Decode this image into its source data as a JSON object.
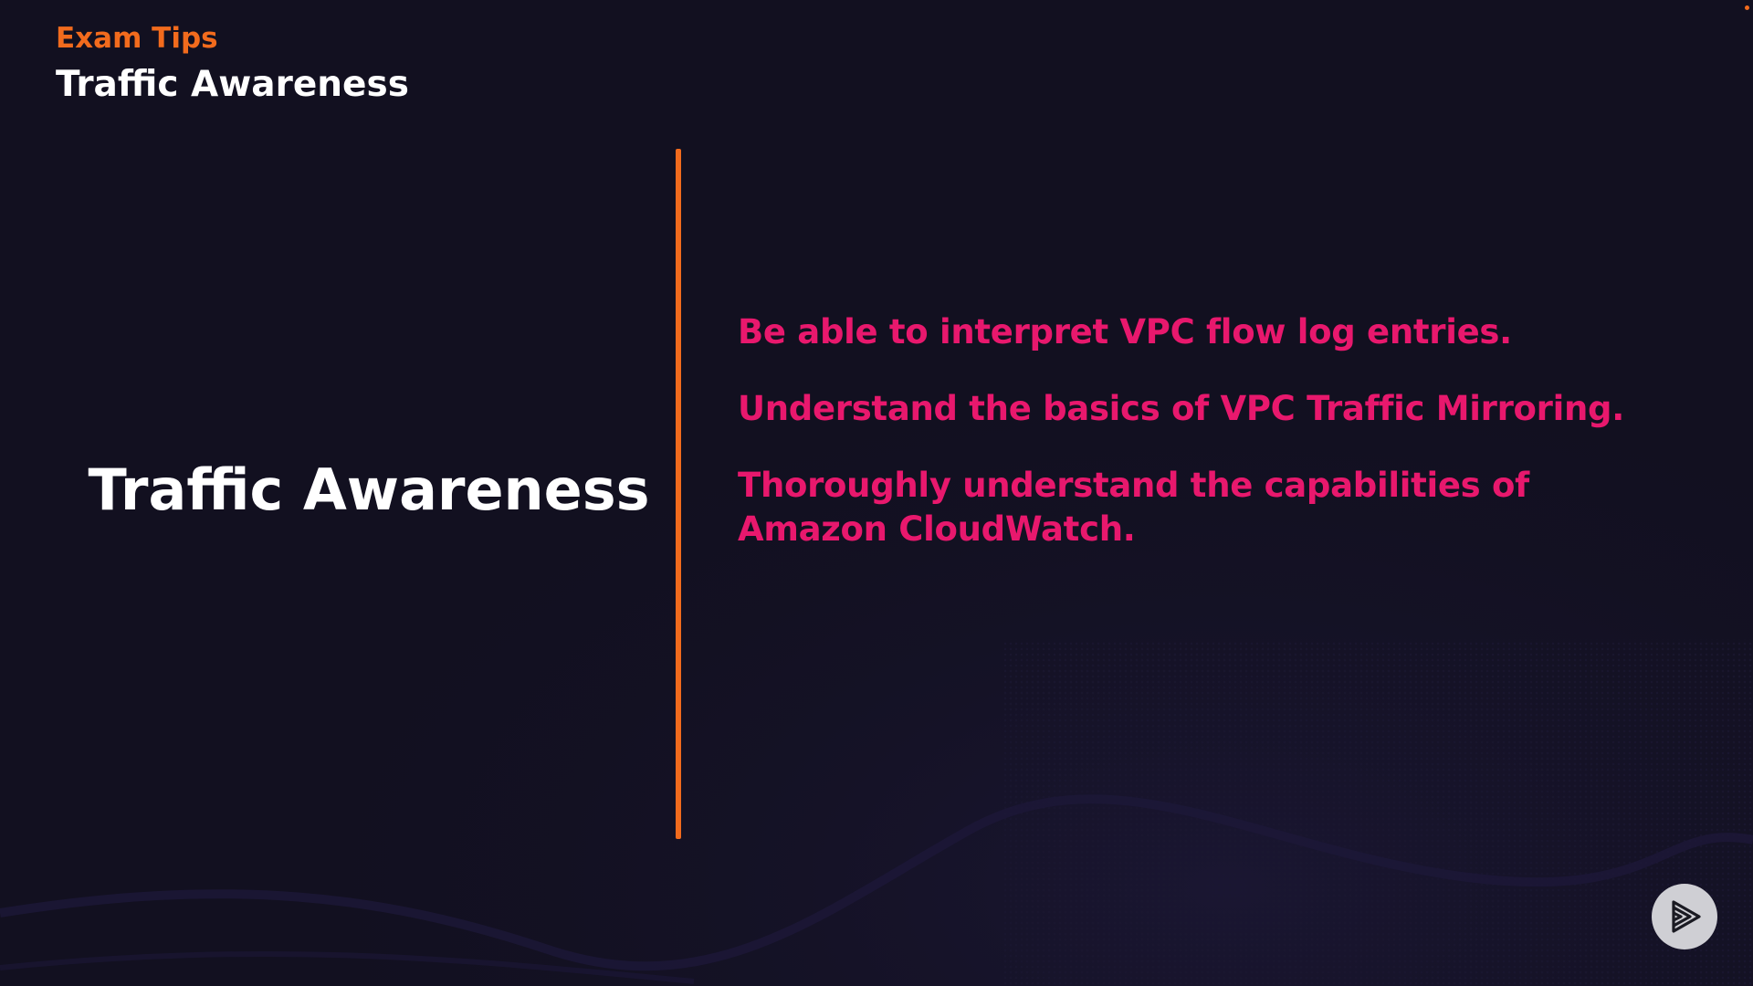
{
  "colors": {
    "background": "#121020",
    "accent_orange": "#f26b1d",
    "accent_pink": "#e8186d",
    "title_white": "#ffffff",
    "wave": "#1d1838"
  },
  "header": {
    "eyebrow": "Exam Tips",
    "title": "Traffic Awareness"
  },
  "main": {
    "title": "Traffic Awareness",
    "points": [
      "Be able to interpret VPC flow log entries.",
      "Understand the basics of VPC Traffic Mirroring.",
      "Thoroughly understand the capabilities of Amazon CloudWatch."
    ]
  },
  "controls": {
    "play_icon": "play-logo-icon"
  }
}
